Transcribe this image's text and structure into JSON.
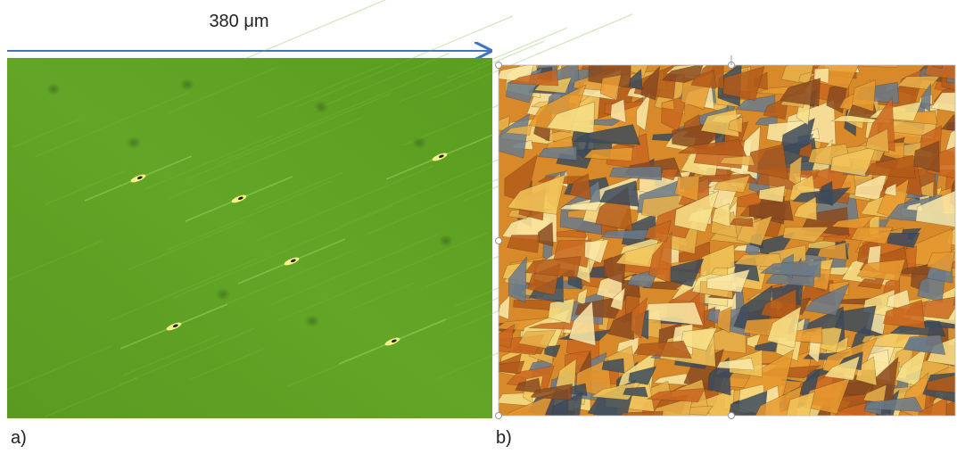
{
  "scale_bar": {
    "label": "380 μm"
  },
  "panels": [
    {
      "label": "a)"
    },
    {
      "label": "b)"
    }
  ]
}
